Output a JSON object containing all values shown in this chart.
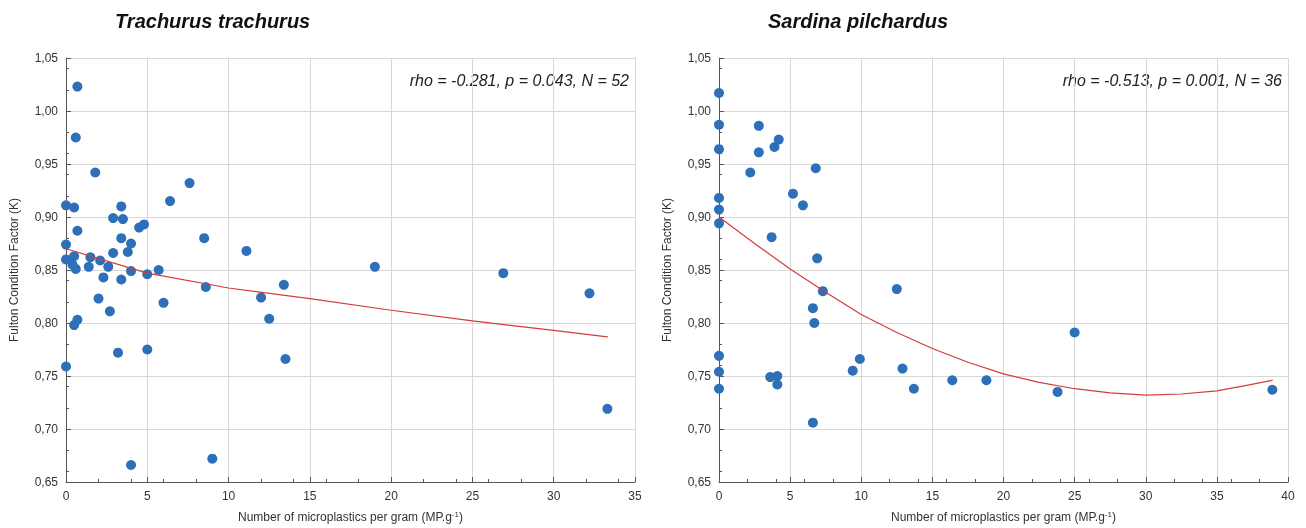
{
  "chart_data": [
    {
      "type": "scatter",
      "title": "Trachurus trachurus",
      "xlabel": "Number of microplastics per gram (MP.g$^{-1}$)",
      "ylabel": "Fulton Condition Factor (K)",
      "annotations": [
        "rho = -0.281, p = 0.043, N = 52"
      ],
      "xlim": [
        0,
        35
      ],
      "xticks": [
        0,
        5,
        10,
        15,
        20,
        25,
        30,
        35
      ],
      "ylim": [
        0.65,
        1.05
      ],
      "yticks": [
        {
          "value": 0.65,
          "label": "0,65"
        },
        {
          "value": 0.7,
          "label": "0,70"
        },
        {
          "value": 0.75,
          "label": "0,75"
        },
        {
          "value": 0.8,
          "label": "0,80"
        },
        {
          "value": 0.85,
          "label": "0,85"
        },
        {
          "value": 0.9,
          "label": "0,90"
        },
        {
          "value": 0.95,
          "label": "0,95"
        },
        {
          "value": 1.0,
          "label": "1,00"
        },
        {
          "value": 1.05,
          "label": "1,05"
        }
      ],
      "grid": true,
      "marker": "circle",
      "series": [
        {
          "color": "#2e6fba",
          "x": [
            0.7,
            0.6,
            1.8,
            0,
            0.5,
            0.7,
            0,
            0.5,
            0.4,
            0.6,
            0,
            0.7,
            0.5,
            0,
            1.5,
            1.4,
            2.1,
            2.3,
            2.6,
            2.0,
            2.7,
            2.9,
            2.9,
            3.4,
            3.5,
            3.4,
            3.2,
            3.4,
            3.8,
            4.0,
            4.0,
            4.5,
            4.8,
            5.0,
            5.0,
            4.0,
            5.7,
            6.0,
            6.4,
            7.6,
            8.5,
            8.6,
            9.0,
            11.1,
            12.0,
            12.5,
            13.4,
            13.5,
            19.0,
            26.9,
            32.2,
            33.3
          ],
          "values": [
            1.023,
            0.975,
            0.942,
            0.911,
            0.909,
            0.887,
            0.874,
            0.863,
            0.855,
            0.851,
            0.86,
            0.803,
            0.798,
            0.759,
            0.862,
            0.853,
            0.859,
            0.843,
            0.853,
            0.823,
            0.811,
            0.866,
            0.899,
            0.91,
            0.898,
            0.88,
            0.772,
            0.841,
            0.867,
            0.849,
            0.875,
            0.89,
            0.893,
            0.846,
            0.775,
            0.666,
            0.85,
            0.819,
            0.915,
            0.932,
            0.88,
            0.834,
            0.672,
            0.868,
            0.824,
            0.804,
            0.836,
            0.766,
            0.853,
            0.847,
            0.828,
            0.719
          ]
        },
        {
          "type": "line",
          "color": "#d23c3c",
          "marker": "none",
          "line_style": "solid",
          "x": [
            0,
            5,
            10,
            15,
            20,
            25,
            30,
            33.3
          ],
          "values": [
            0.87,
            0.847,
            0.833,
            0.823,
            0.812,
            0.802,
            0.793,
            0.787
          ]
        }
      ]
    },
    {
      "type": "scatter",
      "title": "Sardina pilchardus",
      "xlabel": "Number of microplastics per gram (MP.g$^{-1}$)",
      "ylabel": "Fulton Condition Factor (K)",
      "annotations": [
        "rho = -0.513, p = 0.001, N = 36"
      ],
      "xlim": [
        0,
        40
      ],
      "xticks": [
        0,
        5,
        10,
        15,
        20,
        25,
        30,
        35,
        40
      ],
      "ylim": [
        0.65,
        1.05
      ],
      "yticks": [
        {
          "value": 0.65,
          "label": "0,65"
        },
        {
          "value": 0.7,
          "label": "0,70"
        },
        {
          "value": 0.75,
          "label": "0,75"
        },
        {
          "value": 0.8,
          "label": "0,80"
        },
        {
          "value": 0.85,
          "label": "0,85"
        },
        {
          "value": 0.9,
          "label": "0,90"
        },
        {
          "value": 0.95,
          "label": "0,95"
        },
        {
          "value": 1.0,
          "label": "1,00"
        },
        {
          "value": 1.05,
          "label": "1,05"
        }
      ],
      "grid": true,
      "marker": "circle",
      "series": [
        {
          "color": "#2e6fba",
          "x": [
            0,
            0,
            0,
            0,
            0,
            0,
            0,
            0,
            0,
            2.8,
            2.8,
            2.2,
            3.9,
            4.2,
            3.7,
            3.6,
            4.1,
            4.1,
            5.2,
            5.9,
            6.8,
            6.9,
            7.3,
            6.6,
            6.7,
            6.6,
            9.4,
            9.9,
            12.5,
            12.9,
            13.7,
            16.4,
            18.8,
            23.8,
            25.0,
            38.9
          ],
          "values": [
            1.017,
            0.987,
            0.964,
            0.918,
            0.907,
            0.894,
            0.769,
            0.754,
            0.738,
            0.986,
            0.961,
            0.942,
            0.966,
            0.973,
            0.881,
            0.749,
            0.75,
            0.742,
            0.922,
            0.911,
            0.946,
            0.861,
            0.83,
            0.814,
            0.8,
            0.706,
            0.755,
            0.766,
            0.832,
            0.757,
            0.738,
            0.746,
            0.746,
            0.735,
            0.791,
            0.737
          ]
        },
        {
          "type": "line",
          "color": "#d23c3c",
          "marker": "none",
          "line_style": "solid",
          "x": [
            0,
            2.5,
            5,
            7.5,
            10,
            12.5,
            15,
            17.5,
            20,
            22.5,
            25,
            27.5,
            30,
            32.5,
            35,
            37,
            38.9
          ],
          "values": [
            0.9,
            0.875,
            0.851,
            0.829,
            0.808,
            0.791,
            0.776,
            0.763,
            0.752,
            0.744,
            0.738,
            0.734,
            0.732,
            0.733,
            0.736,
            0.741,
            0.746
          ]
        }
      ]
    }
  ]
}
